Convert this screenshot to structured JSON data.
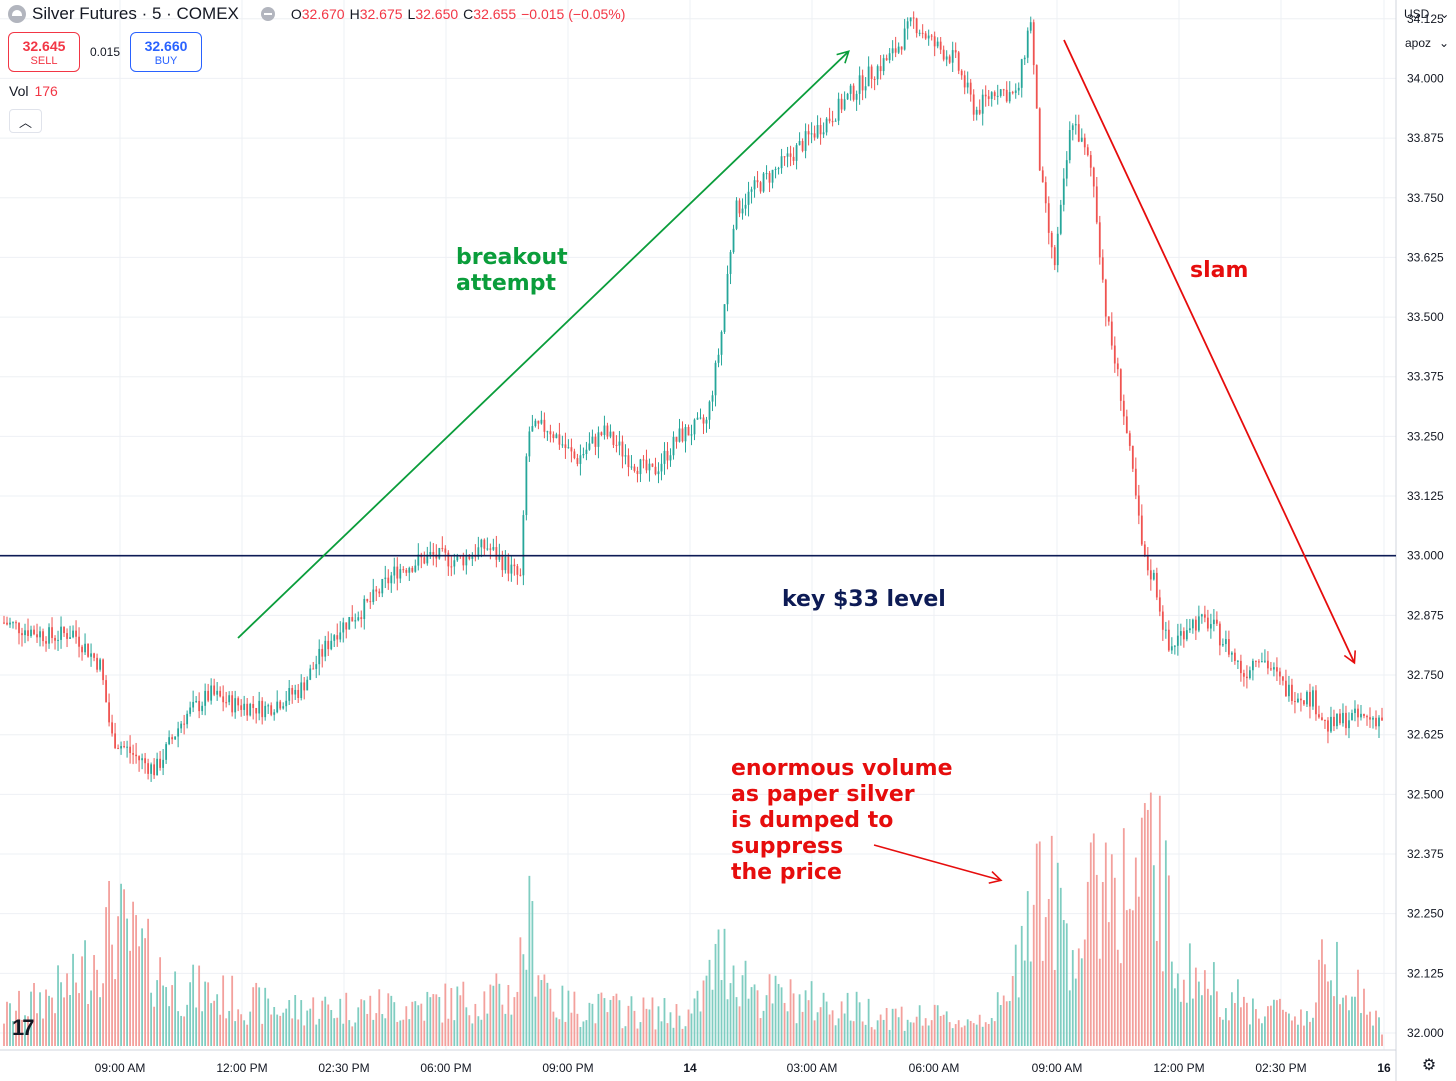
{
  "header": {
    "symbol": "Silver Futures · 5 · COMEX",
    "open_label": "O",
    "open": "32.670",
    "high_label": "H",
    "high": "32.675",
    "low_label": "L",
    "low": "32.650",
    "close_label": "C",
    "close": "32.655",
    "change": "−0.015 (−0.05%)"
  },
  "trade": {
    "sell_price": "32.645",
    "sell_label": "SELL",
    "spread": "0.015",
    "buy_price": "32.660",
    "buy_label": "BUY"
  },
  "volume_legend": {
    "label": "Vol",
    "value": "176"
  },
  "price_axis": {
    "currency": "USD",
    "mode": "apoz"
  },
  "annotations": {
    "breakout": [
      "breakout",
      "attempt"
    ],
    "slam": "slam",
    "key_level": "key $33 level",
    "volume_note": [
      "enormous volume",
      "as paper silver",
      "is dumped to",
      "suppress",
      "the price"
    ]
  },
  "colors": {
    "up": "#26a69a",
    "down": "#ef5350",
    "up_vol": "#7fcdc1",
    "down_vol": "#f3a09c",
    "key_line": "#0d1b55",
    "arrow_green": "#0a9d3b",
    "arrow_red": "#e60d0d"
  },
  "icons": {
    "symbol": "silver-coin-icon",
    "collapse": "chevron-up-icon",
    "logo": "tradingview-logo-icon",
    "settings": "gear-icon"
  },
  "chart_data": {
    "type": "candlestick",
    "title": "Silver Futures · 5 · COMEX",
    "ylim": [
      32.0,
      34.15
    ],
    "yticks": [
      "34.125",
      "34.000",
      "33.875",
      "33.750",
      "33.625",
      "33.500",
      "33.375",
      "33.250",
      "33.125",
      "33.000",
      "32.875",
      "32.750",
      "32.625",
      "32.500",
      "32.375",
      "32.250",
      "32.125",
      "32.000"
    ],
    "ytick_values": [
      34.125,
      34.0,
      33.875,
      33.75,
      33.625,
      33.5,
      33.375,
      33.25,
      33.125,
      33.0,
      32.875,
      32.75,
      32.625,
      32.5,
      32.375,
      32.25,
      32.125,
      32.0
    ],
    "xticks": [
      "09:00 AM",
      "12:00 PM",
      "02:30 PM",
      "06:00 PM",
      "09:00 PM",
      "14",
      "03:00 AM",
      "06:00 AM",
      "09:00 AM",
      "12:00 PM",
      "02:30 PM",
      "16"
    ],
    "key_level": 33.0,
    "price_path": [
      [
        0,
        32.86
      ],
      [
        0.035,
        32.83
      ],
      [
        0.05,
        32.84
      ],
      [
        0.07,
        32.77
      ],
      [
        0.078,
        32.62
      ],
      [
        0.095,
        32.58
      ],
      [
        0.11,
        32.55
      ],
      [
        0.13,
        32.66
      ],
      [
        0.15,
        32.71
      ],
      [
        0.165,
        32.69
      ],
      [
        0.19,
        32.68
      ],
      [
        0.215,
        32.72
      ],
      [
        0.24,
        32.84
      ],
      [
        0.265,
        32.9
      ],
      [
        0.285,
        32.97
      ],
      [
        0.31,
        33.0
      ],
      [
        0.33,
        32.99
      ],
      [
        0.35,
        33.02
      ],
      [
        0.365,
        32.98
      ],
      [
        0.375,
        32.95
      ],
      [
        0.38,
        33.26
      ],
      [
        0.395,
        33.27
      ],
      [
        0.415,
        33.2
      ],
      [
        0.435,
        33.26
      ],
      [
        0.455,
        33.2
      ],
      [
        0.47,
        33.17
      ],
      [
        0.49,
        33.25
      ],
      [
        0.51,
        33.28
      ],
      [
        0.52,
        33.45
      ],
      [
        0.53,
        33.72
      ],
      [
        0.545,
        33.77
      ],
      [
        0.565,
        33.82
      ],
      [
        0.585,
        33.88
      ],
      [
        0.6,
        33.92
      ],
      [
        0.625,
        34.0
      ],
      [
        0.645,
        34.05
      ],
      [
        0.66,
        34.12
      ],
      [
        0.675,
        34.07
      ],
      [
        0.69,
        34.04
      ],
      [
        0.705,
        33.93
      ],
      [
        0.72,
        33.98
      ],
      [
        0.735,
        33.96
      ],
      [
        0.745,
        34.13
      ],
      [
        0.752,
        33.8
      ],
      [
        0.762,
        33.6
      ],
      [
        0.775,
        33.92
      ],
      [
        0.79,
        33.8
      ],
      [
        0.8,
        33.5
      ],
      [
        0.81,
        33.35
      ],
      [
        0.82,
        33.15
      ],
      [
        0.827,
        32.99
      ],
      [
        0.835,
        32.95
      ],
      [
        0.845,
        32.8
      ],
      [
        0.86,
        32.86
      ],
      [
        0.875,
        32.86
      ],
      [
        0.89,
        32.8
      ],
      [
        0.9,
        32.75
      ],
      [
        0.91,
        32.8
      ],
      [
        0.93,
        32.72
      ],
      [
        0.95,
        32.7
      ],
      [
        0.96,
        32.64
      ],
      [
        0.975,
        32.66
      ],
      [
        0.99,
        32.66
      ],
      [
        1.0,
        32.66
      ]
    ],
    "volume_path": [
      [
        0,
        0.15
      ],
      [
        0.05,
        0.3
      ],
      [
        0.08,
        0.6
      ],
      [
        0.12,
        0.3
      ],
      [
        0.2,
        0.18
      ],
      [
        0.3,
        0.2
      ],
      [
        0.37,
        0.25
      ],
      [
        0.38,
        0.6
      ],
      [
        0.4,
        0.2
      ],
      [
        0.5,
        0.15
      ],
      [
        0.52,
        0.45
      ],
      [
        0.55,
        0.25
      ],
      [
        0.65,
        0.15
      ],
      [
        0.7,
        0.12
      ],
      [
        0.73,
        0.2
      ],
      [
        0.745,
        0.85
      ],
      [
        0.76,
        0.7
      ],
      [
        0.78,
        0.5
      ],
      [
        0.8,
        0.9
      ],
      [
        0.82,
        0.7
      ],
      [
        0.835,
        1.0
      ],
      [
        0.85,
        0.4
      ],
      [
        0.9,
        0.2
      ],
      [
        0.95,
        0.15
      ],
      [
        0.96,
        0.5
      ],
      [
        1.0,
        0.08
      ]
    ]
  }
}
